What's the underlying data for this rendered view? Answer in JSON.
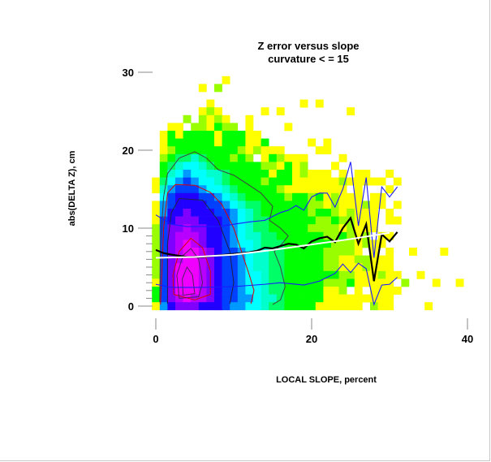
{
  "chart_data": {
    "type": "heatmap",
    "title": "Z error versus slope",
    "subtitle": "curvature < = 15",
    "xlabel": "LOCAL SLOPE, percent",
    "ylabel": "abs(DELTA Z), cm",
    "xlim": [
      0,
      40
    ],
    "ylim": [
      0,
      30
    ],
    "xticks": [
      0,
      20,
      40
    ],
    "yticks": [
      0,
      10,
      20,
      30
    ],
    "grid": false,
    "legend": "none",
    "cell_size": 1,
    "density_levels_legend": {
      "1": "#ffff00",
      "2": "#99ff00",
      "3": "#00ff00",
      "4": "#00ff66",
      "5": "#00ffcc",
      "6": "#00ffff",
      "7": "#0099ff",
      "8": "#0040ff",
      "9": "#2200ff",
      "a": "#8000ff",
      "b": "#b800ff",
      "c": "#f000ff"
    },
    "density_rows_top_y": 29,
    "density_rows": [
      ".........1...............................",
      "......1.2................................",
      ".........................................",
      ".......1...........1.1...................",
      "......121.....1.1........1...............",
      "....2.2121..1.....................",
      "..11.221322.1....1.......................",
      ".1313333133311............................",
      ".13333331333113.....1.1..................",
      ".1233333333212111....11..................",
      ".234454333232.132111....1................",
      ".3456654333333221312...1.................",
      ".3567665543333313312111.1.11..1..........",
      "146787665433332333111111211111.1.........",
      "1578887665433333211111111.1...1..........",
      ".68999887654333332332312111.11...........",
      "178999988765443333332212111211 1.........",
      "1799a999887654333333233212111.1..........",
      "189aaa99987654433333322322111.11.........",
      "28aabaa9987654433333222212111............",
      "28abbba998765544333333223212 11..........",
      "28abcba99876654443333332221211...........",
      "28abccba9887655443333322221.1.1..1...1...",
      "28abccba98876554433333221122111..........",
      "28acccba98876554433333221112111..........",
      "28acccba988766544333333322111211..1......",
      "18acccba98876654433333222311111 2...1..1.",
      "38acccba98876654433333112 1.1111.........",
      "38abcbba98877655433333111111111..........",
      "179aaa999877665443333111111.211....1....."
    ],
    "series": [
      {
        "style": "black-thick",
        "x": [
          0,
          1,
          2,
          4,
          6,
          8,
          10,
          12,
          13,
          14,
          15,
          16,
          17,
          18,
          19,
          20,
          21,
          22,
          23,
          24,
          25,
          26,
          27,
          28,
          29,
          30,
          31
        ],
        "y": [
          7.2,
          6.8,
          6.6,
          6.3,
          6.3,
          6.5,
          6.7,
          6.9,
          7.1,
          7.5,
          7.4,
          7.7,
          8.0,
          7.9,
          7.4,
          8.3,
          8.7,
          8.9,
          8.2,
          10.0,
          11.3,
          8.0,
          10.5,
          3.2,
          9.2,
          8.3,
          9.5
        ]
      },
      {
        "style": "white-fit",
        "x": [
          0,
          5,
          10,
          15,
          20,
          25,
          30
        ],
        "y": [
          6.2,
          6.3,
          6.6,
          7.2,
          7.9,
          8.6,
          9.4
        ]
      },
      {
        "style": "blue-upper",
        "x": [
          0,
          2,
          4,
          8,
          12,
          14,
          16,
          17,
          18,
          19,
          20,
          21,
          22,
          23,
          24,
          25,
          26,
          27,
          28,
          29,
          30,
          31
        ],
        "y": [
          11.7,
          10.5,
          10.2,
          10.2,
          10.8,
          11.0,
          12.0,
          12.3,
          12.9,
          12.3,
          14.0,
          14.5,
          14.5,
          12.7,
          15.0,
          18.5,
          10.3,
          16.5,
          6.2,
          15.3,
          14.0,
          15.3
        ]
      },
      {
        "style": "blue-lower",
        "x": [
          0,
          2,
          6,
          10,
          14,
          16,
          19,
          21,
          22,
          23,
          24,
          25,
          26,
          27,
          28,
          29,
          30,
          31
        ],
        "y": [
          2.8,
          2.4,
          2.4,
          2.5,
          2.8,
          3.0,
          2.7,
          3.2,
          3.7,
          4.2,
          5.4,
          4.3,
          5.5,
          4.8,
          0.2,
          2.7,
          2.8,
          3.7
        ]
      }
    ],
    "contours": [
      {
        "color": "#404040",
        "points": [
          [
            0.5,
            0.5
          ],
          [
            0.6,
            8
          ],
          [
            1.0,
            14
          ],
          [
            1.5,
            17
          ],
          [
            3,
            19
          ],
          [
            5,
            19.8
          ],
          [
            6.5,
            19
          ],
          [
            8,
            17.5
          ],
          [
            10,
            16.8
          ],
          [
            12,
            15.5
          ],
          [
            13.5,
            14.5
          ],
          [
            15,
            12.8
          ],
          [
            14.6,
            11
          ],
          [
            16,
            10
          ],
          [
            17,
            9
          ],
          [
            16.2,
            8
          ],
          [
            15.2,
            7
          ],
          [
            16,
            5
          ],
          [
            16.6,
            2.5
          ],
          [
            16,
            0.8
          ],
          [
            15,
            0.2
          ]
        ]
      },
      {
        "color": "#dd0000",
        "points": [
          [
            0.6,
            0.2
          ],
          [
            0.8,
            5
          ],
          [
            1.0,
            10
          ],
          [
            1.5,
            14.5
          ],
          [
            2.5,
            15.6
          ],
          [
            5,
            15.5
          ],
          [
            7,
            14.6
          ],
          [
            8.5,
            13
          ],
          [
            10,
            10
          ],
          [
            11,
            7
          ],
          [
            12,
            4
          ],
          [
            12.6,
            2
          ],
          [
            12.2,
            0.3
          ]
        ]
      },
      {
        "color": "#202040",
        "points": [
          [
            1.5,
            0.3
          ],
          [
            1.5,
            8
          ],
          [
            2,
            12
          ],
          [
            3,
            13.8
          ],
          [
            6,
            13.6
          ],
          [
            8,
            11
          ],
          [
            9.5,
            7
          ],
          [
            10,
            3
          ],
          [
            9.5,
            0.3
          ]
        ]
      },
      {
        "color": "#dd0000",
        "points": [
          [
            2.3,
            1.5
          ],
          [
            2.2,
            4
          ],
          [
            3,
            7
          ],
          [
            4.5,
            8.7
          ],
          [
            6,
            7.5
          ],
          [
            7,
            4.5
          ],
          [
            7,
            1.5
          ],
          [
            5,
            0.8
          ],
          [
            2.3,
            1.5
          ]
        ]
      },
      {
        "color": "#502060",
        "points": [
          [
            3,
            1
          ],
          [
            2.7,
            4
          ],
          [
            3.5,
            6.5
          ],
          [
            4.5,
            7.4
          ],
          [
            5.5,
            6
          ],
          [
            6,
            3
          ],
          [
            5.5,
            1.2
          ],
          [
            3,
            1
          ]
        ]
      },
      {
        "color": "#502060",
        "points": [
          [
            3.5,
            1.4
          ],
          [
            3.4,
            3.5
          ],
          [
            4,
            5
          ],
          [
            4.7,
            4
          ],
          [
            5,
            1.6
          ],
          [
            3.5,
            1.4
          ]
        ]
      }
    ]
  }
}
